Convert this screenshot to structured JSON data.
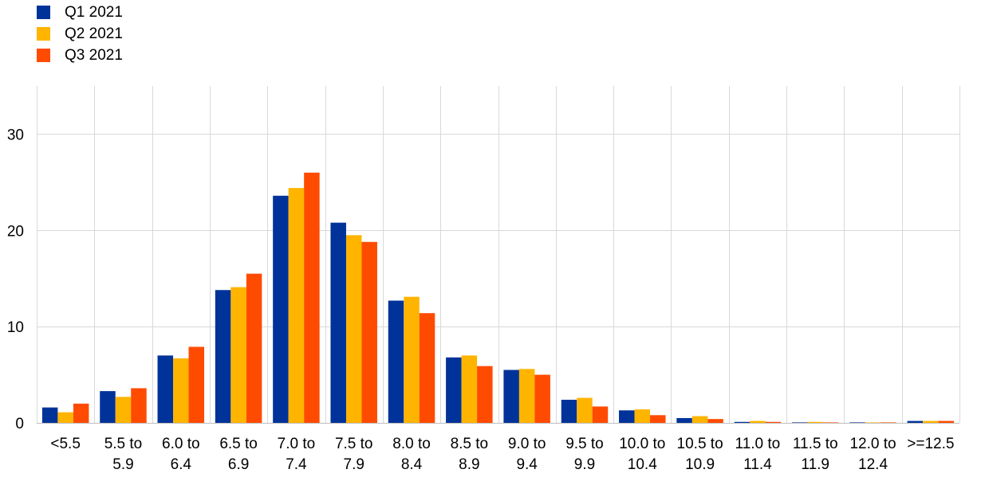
{
  "chart_data": {
    "type": "bar",
    "categories": [
      [
        "<5.5"
      ],
      [
        "5.5 to",
        "5.9"
      ],
      [
        "6.0 to",
        "6.4"
      ],
      [
        "6.5 to",
        "6.9"
      ],
      [
        "7.0 to",
        "7.4"
      ],
      [
        "7.5 to",
        "7.9"
      ],
      [
        "8.0 to",
        "8.4"
      ],
      [
        "8.5 to",
        "8.9"
      ],
      [
        "9.0 to",
        "9.4"
      ],
      [
        "9.5 to",
        "9.9"
      ],
      [
        "10.0 to",
        "10.4"
      ],
      [
        "10.5 to",
        "10.9"
      ],
      [
        "11.0 to",
        "11.4"
      ],
      [
        "11.5 to",
        "11.9"
      ],
      [
        "12.0 to",
        "12.4"
      ],
      [
        ">=12.5"
      ]
    ],
    "series": [
      {
        "name": "Q1 2021",
        "color": "#003399",
        "values": [
          1.6,
          3.3,
          7.0,
          13.8,
          23.6,
          20.8,
          12.7,
          6.8,
          5.5,
          2.4,
          1.3,
          0.5,
          0.1,
          0.05,
          0.05,
          0.2
        ]
      },
      {
        "name": "Q2 2021",
        "color": "#FFB400",
        "values": [
          1.1,
          2.7,
          6.7,
          14.1,
          24.4,
          19.5,
          13.1,
          7.0,
          5.6,
          2.6,
          1.4,
          0.7,
          0.2,
          0.1,
          0.05,
          0.2
        ]
      },
      {
        "name": "Q3 2021",
        "color": "#FF4B00",
        "values": [
          2.0,
          3.6,
          7.9,
          15.5,
          26.0,
          18.8,
          11.4,
          5.9,
          5.0,
          1.7,
          0.8,
          0.4,
          0.1,
          0.05,
          0.05,
          0.2
        ]
      }
    ],
    "y_ticks": [
      "0",
      "10",
      "20",
      "30"
    ],
    "ylim": [
      0,
      35
    ],
    "grid": true,
    "legend_position": "top-left"
  }
}
